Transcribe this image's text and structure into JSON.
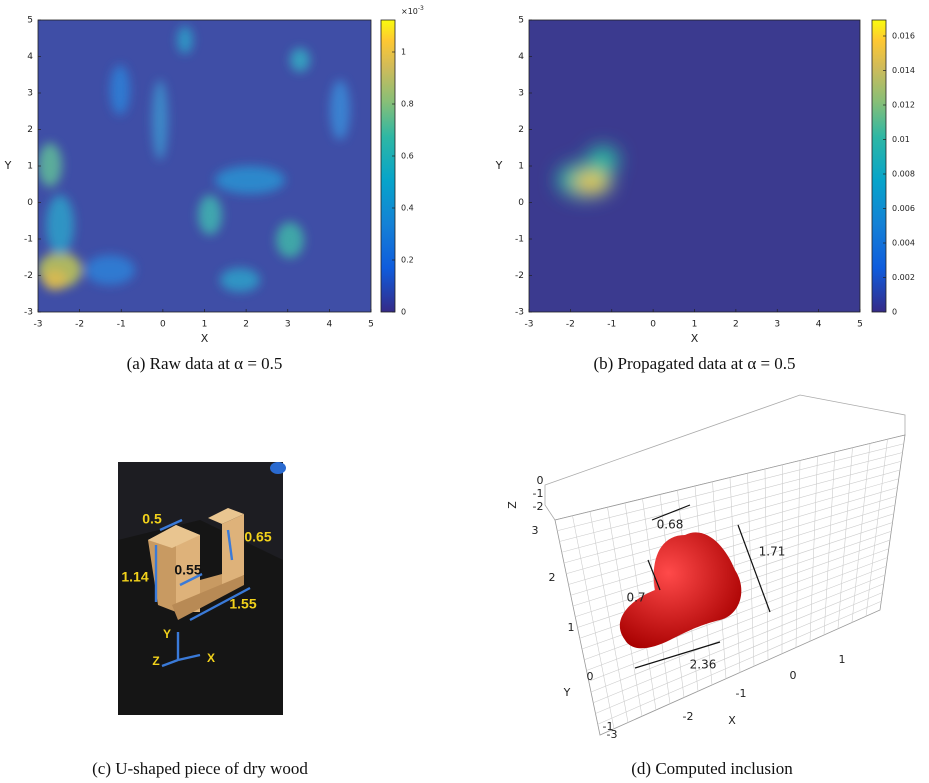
{
  "panels": [
    {
      "caption": "(a) Raw data at α = 0.5",
      "x_label": "X",
      "y_label": "Y",
      "xticks": [
        -3,
        -2,
        -1,
        0,
        1,
        2,
        3,
        4,
        5
      ],
      "yticks": [
        -3,
        -2,
        -1,
        0,
        1,
        2,
        3,
        4,
        5
      ],
      "colorbar_ticks": [
        0,
        0.2,
        0.4,
        0.6,
        0.8,
        1
      ],
      "colorbar_scale": {
        "base": "×10",
        "exponent": "-3"
      }
    },
    {
      "caption": "(b) Propagated data at α = 0.5",
      "x_label": "X",
      "y_label": "Y",
      "xticks": [
        -3,
        -2,
        -1,
        0,
        1,
        2,
        3,
        4,
        5
      ],
      "yticks": [
        -3,
        -2,
        -1,
        0,
        1,
        2,
        3,
        4,
        5
      ],
      "colorbar_ticks": [
        0,
        0.002,
        0.004,
        0.006,
        0.008,
        0.01,
        0.012,
        0.014,
        0.016
      ]
    },
    {
      "caption": "(c) U-shaped piece of dry wood",
      "dimensions": [
        0.5,
        0.65,
        1.14,
        0.55,
        1.55
      ],
      "axes": [
        "Y",
        "Z",
        "X"
      ]
    },
    {
      "caption": "(d) Computed inclusion",
      "z_label": "Z",
      "y_label": "Y",
      "x_label": "X",
      "zticks": [
        0,
        -1,
        -2
      ],
      "yticks": [
        3,
        2,
        1,
        0,
        -1
      ],
      "xticks": [
        -3,
        -2,
        -1,
        0,
        1
      ],
      "dimensions": [
        0.68,
        1.71,
        0.7,
        2.36
      ]
    }
  ]
}
